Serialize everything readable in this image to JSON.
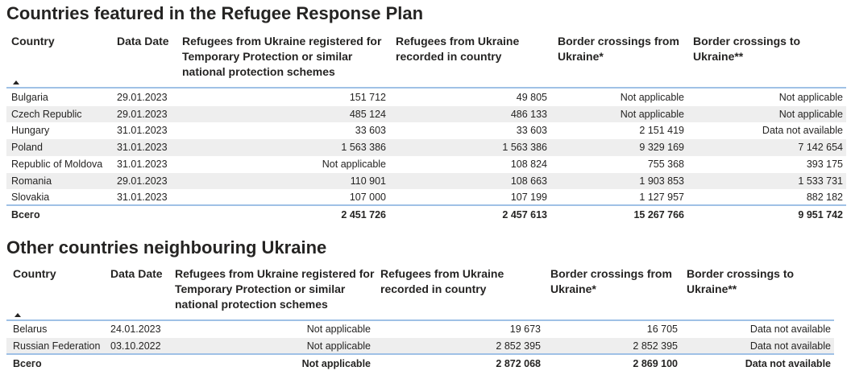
{
  "sections": [
    {
      "title": "Countries featured in the Refugee Response Plan",
      "columns": [
        "Country",
        "Data Date",
        "Refugees from Ukraine registered for Temporary Protection or similar national protection schemes",
        "Refugees from Ukraine recorded in country",
        "Border crossings from Ukraine*",
        "Border crossings to Ukraine**"
      ],
      "rows": [
        [
          "Bulgaria",
          "29.01.2023",
          "151 712",
          "49 805",
          "Not applicable",
          "Not applicable"
        ],
        [
          "Czech Republic",
          "29.01.2023",
          "485 124",
          "486 133",
          "Not applicable",
          "Not applicable"
        ],
        [
          "Hungary",
          "31.01.2023",
          "33 603",
          "33 603",
          "2 151 419",
          "Data not available"
        ],
        [
          "Poland",
          "31.01.2023",
          "1 563 386",
          "1 563 386",
          "9 329 169",
          "7 142 654"
        ],
        [
          "Republic of Moldova",
          "31.01.2023",
          "Not applicable",
          "108 824",
          "755 368",
          "393 175"
        ],
        [
          "Romania",
          "29.01.2023",
          "110 901",
          "108 663",
          "1 903 853",
          "1 533 731"
        ],
        [
          "Slovakia",
          "31.01.2023",
          "107 000",
          "107 199",
          "1 127 957",
          "882 182"
        ]
      ],
      "total": [
        "Всего",
        null,
        "2 451 726",
        "2 457 613",
        "15 267 766",
        "9 951 742"
      ]
    },
    {
      "title": "Other countries neighbouring Ukraine",
      "columns": [
        "Country",
        "Data Date",
        "Refugees from Ukraine registered for Temporary Protection or similar national protection schemes",
        "Refugees from Ukraine recorded in country",
        "Border crossings from Ukraine*",
        "Border crossings to Ukraine**"
      ],
      "rows": [
        [
          "Belarus",
          "24.01.2023",
          "Not applicable",
          "19 673",
          "16 705",
          "Data not available"
        ],
        [
          "Russian Federation",
          "03.10.2022",
          "Not applicable",
          "2 852 395",
          "2 852 395",
          "Data not available"
        ]
      ],
      "total": [
        "Всего",
        null,
        "Not applicable",
        "2 872 068",
        "2 869 100",
        "Data not available"
      ]
    }
  ]
}
